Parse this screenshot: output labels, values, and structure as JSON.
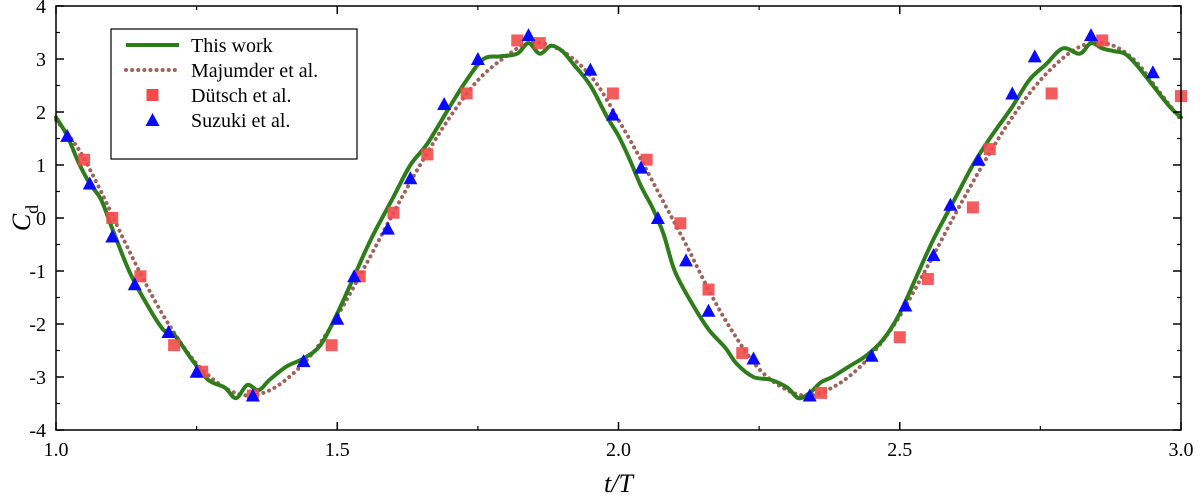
{
  "chart_data": {
    "type": "line",
    "xlabel": "t/T",
    "ylabel": "Cd",
    "xlim": [
      1.0,
      3.0
    ],
    "ylim": [
      -4,
      4
    ],
    "x_ticks": [
      1.0,
      1.5,
      2.0,
      2.5,
      3.0
    ],
    "x_tick_labels": [
      "1.0",
      "1.5",
      "2.0",
      "2.5",
      "3.0"
    ],
    "y_ticks": [
      -4,
      -3,
      -2,
      -1,
      0,
      1,
      2,
      3,
      4
    ],
    "y_tick_labels": [
      "-4",
      "-3",
      "-2",
      "-1",
      "0",
      "1",
      "2",
      "3",
      "4"
    ],
    "grid": false,
    "legend_position": "top-left",
    "series": [
      {
        "name": "This work",
        "style": "solid-line",
        "color": "#2e7d1a",
        "x": [
          1.0,
          1.02,
          1.04,
          1.06,
          1.08,
          1.1,
          1.13,
          1.16,
          1.19,
          1.21,
          1.24,
          1.27,
          1.3,
          1.32,
          1.34,
          1.36,
          1.38,
          1.41,
          1.44,
          1.47,
          1.5,
          1.53,
          1.56,
          1.6,
          1.63,
          1.66,
          1.7,
          1.73,
          1.76,
          1.79,
          1.82,
          1.84,
          1.86,
          1.88,
          1.9,
          1.92,
          1.95,
          1.98,
          2.0,
          2.02,
          2.04,
          2.06,
          2.08,
          2.1,
          2.13,
          2.16,
          2.19,
          2.21,
          2.24,
          2.27,
          2.3,
          2.32,
          2.34,
          2.36,
          2.38,
          2.41,
          2.44,
          2.47,
          2.5,
          2.53,
          2.56,
          2.6,
          2.63,
          2.66,
          2.7,
          2.73,
          2.76,
          2.79,
          2.82,
          2.84,
          2.86,
          2.88,
          2.9,
          2.92,
          2.95,
          2.98,
          3.0
        ],
        "y": [
          1.9,
          1.55,
          1.05,
          0.65,
          0.35,
          -0.2,
          -1.0,
          -1.6,
          -2.1,
          -2.2,
          -2.65,
          -3.05,
          -3.2,
          -3.4,
          -3.15,
          -3.25,
          -3.05,
          -2.8,
          -2.65,
          -2.4,
          -1.8,
          -1.1,
          -0.4,
          0.4,
          1.0,
          1.4,
          2.1,
          2.6,
          3.0,
          3.05,
          3.1,
          3.3,
          3.1,
          3.25,
          3.15,
          2.9,
          2.5,
          1.9,
          1.55,
          1.1,
          0.6,
          0.2,
          -0.3,
          -1.0,
          -1.6,
          -2.1,
          -2.45,
          -2.75,
          -3.0,
          -3.05,
          -3.2,
          -3.4,
          -3.3,
          -3.1,
          -3.0,
          -2.8,
          -2.6,
          -2.3,
          -1.8,
          -1.1,
          -0.4,
          0.4,
          1.0,
          1.5,
          2.1,
          2.6,
          2.9,
          3.2,
          3.1,
          3.3,
          3.2,
          3.15,
          3.1,
          2.9,
          2.5,
          2.1,
          1.9
        ]
      },
      {
        "name": "Majumder et al.",
        "style": "dotted-line",
        "color": "#a0635c",
        "x": [
          1.0,
          1.04,
          1.08,
          1.12,
          1.16,
          1.2,
          1.25,
          1.3,
          1.34,
          1.38,
          1.42,
          1.46,
          1.5,
          1.55,
          1.6,
          1.65,
          1.7,
          1.75,
          1.8,
          1.84,
          1.88,
          1.92,
          1.96,
          2.0,
          2.04,
          2.08,
          2.12,
          2.16,
          2.2,
          2.25,
          2.3,
          2.34,
          2.38,
          2.42,
          2.46,
          2.5,
          2.55,
          2.6,
          2.65,
          2.7,
          2.75,
          2.8,
          2.84,
          2.88,
          2.92,
          2.96,
          3.0
        ],
        "y": [
          1.85,
          1.3,
          0.5,
          -0.4,
          -1.25,
          -2.0,
          -2.75,
          -3.2,
          -3.35,
          -3.25,
          -2.95,
          -2.5,
          -1.85,
          -0.9,
          0.1,
          1.05,
          1.9,
          2.6,
          3.05,
          3.3,
          3.25,
          3.0,
          2.55,
          1.85,
          1.1,
          0.3,
          -0.5,
          -1.35,
          -2.1,
          -2.85,
          -3.25,
          -3.35,
          -3.2,
          -2.9,
          -2.45,
          -1.85,
          -0.9,
          0.1,
          1.05,
          1.9,
          2.6,
          3.1,
          3.3,
          3.25,
          2.95,
          2.4,
          1.85
        ]
      },
      {
        "name": "Dütsch et al.",
        "style": "square-marker",
        "color": "#f24a4a",
        "x": [
          1.05,
          1.1,
          1.15,
          1.21,
          1.26,
          1.35,
          1.49,
          1.54,
          1.6,
          1.66,
          1.73,
          1.82,
          1.86,
          1.99,
          2.05,
          2.11,
          2.16,
          2.22,
          2.36,
          2.5,
          2.55,
          2.63,
          2.66,
          2.77,
          2.86,
          3.0
        ],
        "y": [
          1.1,
          0.0,
          -1.1,
          -2.4,
          -2.9,
          -3.35,
          -2.4,
          -1.1,
          0.1,
          1.2,
          2.35,
          3.35,
          3.3,
          2.35,
          1.1,
          -0.1,
          -1.35,
          -2.55,
          -3.3,
          -2.25,
          -1.15,
          0.2,
          1.3,
          2.35,
          3.35,
          2.3
        ]
      },
      {
        "name": "Suzuki et al.",
        "style": "triangle-marker",
        "color": "#0a0aff",
        "x": [
          1.02,
          1.06,
          1.1,
          1.14,
          1.2,
          1.25,
          1.35,
          1.44,
          1.5,
          1.53,
          1.59,
          1.63,
          1.69,
          1.75,
          1.84,
          1.95,
          1.99,
          2.04,
          2.07,
          2.12,
          2.16,
          2.24,
          2.34,
          2.45,
          2.51,
          2.56,
          2.59,
          2.64,
          2.7,
          2.74,
          2.84,
          2.95
        ],
        "y": [
          1.55,
          0.65,
          -0.35,
          -1.25,
          -2.15,
          -2.9,
          -3.35,
          -2.7,
          -1.9,
          -1.1,
          -0.2,
          0.75,
          2.15,
          3.0,
          3.45,
          2.8,
          1.95,
          0.95,
          0.0,
          -0.8,
          -1.75,
          -2.65,
          -3.35,
          -2.6,
          -1.65,
          -0.7,
          0.25,
          1.1,
          2.35,
          3.05,
          3.45,
          2.75
        ]
      }
    ]
  }
}
